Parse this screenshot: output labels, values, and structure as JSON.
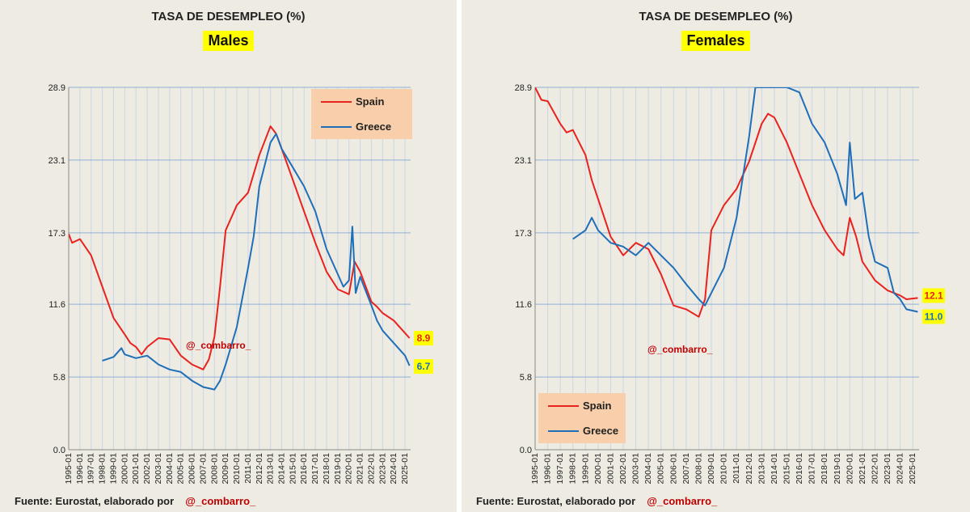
{
  "panels": [
    {
      "title": "TASA DE DESEMPLEO (%)",
      "subtitle": "Males",
      "watermark": "@_combarro_",
      "source_text": "Fuente: Eurostat, elaborado por",
      "source_handle": "@_combarro_"
    },
    {
      "title": "TASA DE DESEMPLEO (%)",
      "subtitle": "Females",
      "watermark": "@_combarro_",
      "source_text": "Fuente: Eurostat, elaborado por",
      "source_handle": "@_combarro_"
    }
  ],
  "chart_data": [
    {
      "type": "line",
      "title": "TASA DE DESEMPLEO (%)",
      "subtitle": "Males",
      "x_ticks": [
        "1995-01",
        "1996-01",
        "1997-01",
        "1998-01",
        "1999-01",
        "2000-01",
        "2001-01",
        "2002-01",
        "2003-01",
        "2004-01",
        "2005-01",
        "2006-01",
        "2007-01",
        "2008-01",
        "2009-01",
        "2010-01",
        "2011-01",
        "2012-01",
        "2013-01",
        "2014-01",
        "2015-01",
        "2016-01",
        "2017-01",
        "2018-01",
        "2019-01",
        "2020-01",
        "2021-01",
        "2022-01",
        "2023-01",
        "2024-01",
        "2025-01"
      ],
      "y_ticks": [
        "0.0",
        "5.8",
        "11.6",
        "17.3",
        "23.1",
        "28.9"
      ],
      "ylim": [
        0,
        28.9
      ],
      "grid": true,
      "legend_position": "top-right",
      "series": [
        {
          "name": "Spain",
          "color": "#e8231e",
          "start": 1995.0,
          "end_label": "8.9",
          "label_bg": "#ffff00",
          "label_color": "#e8231e",
          "points": [
            [
              1995.0,
              17.2
            ],
            [
              1995.3,
              16.5
            ],
            [
              1996.0,
              16.8
            ],
            [
              1997.0,
              15.5
            ],
            [
              1998.0,
              13.0
            ],
            [
              1999.0,
              10.5
            ],
            [
              2000.0,
              9.2
            ],
            [
              2000.5,
              8.5
            ],
            [
              2001.0,
              8.2
            ],
            [
              2001.5,
              7.6
            ],
            [
              2002.0,
              8.2
            ],
            [
              2003.0,
              8.9
            ],
            [
              2004.0,
              8.8
            ],
            [
              2005.0,
              7.5
            ],
            [
              2006.0,
              6.8
            ],
            [
              2007.0,
              6.4
            ],
            [
              2007.5,
              7.2
            ],
            [
              2008.0,
              9.0
            ],
            [
              2008.5,
              13.0
            ],
            [
              2009.0,
              17.5
            ],
            [
              2010.0,
              19.5
            ],
            [
              2011.0,
              20.5
            ],
            [
              2012.0,
              23.5
            ],
            [
              2013.0,
              25.8
            ],
            [
              2013.5,
              25.2
            ],
            [
              2014.0,
              24.0
            ],
            [
              2015.0,
              21.5
            ],
            [
              2016.0,
              19.0
            ],
            [
              2017.0,
              16.5
            ],
            [
              2018.0,
              14.2
            ],
            [
              2019.0,
              12.8
            ],
            [
              2020.0,
              12.4
            ],
            [
              2020.5,
              15.0
            ],
            [
              2021.0,
              14.2
            ],
            [
              2022.0,
              11.8
            ],
            [
              2022.5,
              11.4
            ],
            [
              2023.0,
              10.9
            ],
            [
              2024.0,
              10.3
            ],
            [
              2024.5,
              9.8
            ],
            [
              2025.0,
              9.3
            ],
            [
              2025.4,
              8.9
            ]
          ]
        },
        {
          "name": "Greece",
          "color": "#1f6fb8",
          "start": 1998.0,
          "end_label": "6.7",
          "label_bg": "#ffff00",
          "label_color": "#1f6fb8",
          "points": [
            [
              1998.0,
              7.1
            ],
            [
              1999.0,
              7.4
            ],
            [
              1999.7,
              8.1
            ],
            [
              2000.0,
              7.6
            ],
            [
              2001.0,
              7.3
            ],
            [
              2002.0,
              7.5
            ],
            [
              2003.0,
              6.8
            ],
            [
              2004.0,
              6.4
            ],
            [
              2005.0,
              6.2
            ],
            [
              2006.0,
              5.5
            ],
            [
              2007.0,
              5.0
            ],
            [
              2008.0,
              4.8
            ],
            [
              2008.5,
              5.5
            ],
            [
              2009.0,
              6.8
            ],
            [
              2010.0,
              9.8
            ],
            [
              2011.0,
              14.5
            ],
            [
              2011.5,
              17.0
            ],
            [
              2012.0,
              21.0
            ],
            [
              2013.0,
              24.5
            ],
            [
              2013.5,
              25.2
            ],
            [
              2014.0,
              24.0
            ],
            [
              2015.0,
              22.5
            ],
            [
              2016.0,
              21.0
            ],
            [
              2017.0,
              19.0
            ],
            [
              2018.0,
              16.0
            ],
            [
              2019.0,
              14.0
            ],
            [
              2019.5,
              13.0
            ],
            [
              2020.0,
              13.5
            ],
            [
              2020.3,
              17.8
            ],
            [
              2020.6,
              12.5
            ],
            [
              2021.0,
              13.8
            ],
            [
              2022.0,
              11.5
            ],
            [
              2022.5,
              10.3
            ],
            [
              2023.0,
              9.5
            ],
            [
              2024.0,
              8.5
            ],
            [
              2025.0,
              7.5
            ],
            [
              2025.4,
              6.7
            ]
          ]
        }
      ]
    },
    {
      "type": "line",
      "title": "TASA DE DESEMPLEO (%)",
      "subtitle": "Females",
      "x_ticks": [
        "1995-01",
        "1996-01",
        "1997-01",
        "1998-01",
        "1999-01",
        "2000-01",
        "2001-01",
        "2002-01",
        "2003-01",
        "2004-01",
        "2005-01",
        "2006-01",
        "2007-01",
        "2008-01",
        "2009-01",
        "2010-01",
        "2011-01",
        "2012-01",
        "2013-01",
        "2014-01",
        "2015-01",
        "2016-01",
        "2017-01",
        "2018-01",
        "2019-01",
        "2020-01",
        "2021-01",
        "2022-01",
        "2023-01",
        "2024-01",
        "2025-01"
      ],
      "y_ticks": [
        "0.0",
        "5.8",
        "11.6",
        "17.3",
        "23.1",
        "28.9"
      ],
      "ylim": [
        0,
        28.9
      ],
      "grid": true,
      "legend_position": "bottom-left",
      "series": [
        {
          "name": "Spain",
          "color": "#e8231e",
          "start": 1995.0,
          "end_label": "12.1",
          "label_bg": "#ffff00",
          "label_color": "#e8231e",
          "points": [
            [
              1995.0,
              28.9
            ],
            [
              1995.5,
              27.9
            ],
            [
              1996.0,
              27.8
            ],
            [
              1997.0,
              26.0
            ],
            [
              1997.5,
              25.3
            ],
            [
              1998.0,
              25.5
            ],
            [
              1999.0,
              23.5
            ],
            [
              1999.5,
              21.5
            ],
            [
              2000.0,
              20.0
            ],
            [
              2001.0,
              17.0
            ],
            [
              2002.0,
              15.5
            ],
            [
              2003.0,
              16.5
            ],
            [
              2004.0,
              16.0
            ],
            [
              2005.0,
              14.0
            ],
            [
              2006.0,
              11.5
            ],
            [
              2007.0,
              11.2
            ],
            [
              2008.0,
              10.6
            ],
            [
              2008.5,
              12.0
            ],
            [
              2009.0,
              17.5
            ],
            [
              2010.0,
              19.5
            ],
            [
              2011.0,
              20.8
            ],
            [
              2012.0,
              23.0
            ],
            [
              2013.0,
              26.0
            ],
            [
              2013.5,
              26.8
            ],
            [
              2014.0,
              26.5
            ],
            [
              2015.0,
              24.5
            ],
            [
              2016.0,
              22.0
            ],
            [
              2017.0,
              19.5
            ],
            [
              2018.0,
              17.5
            ],
            [
              2019.0,
              16.0
            ],
            [
              2019.5,
              15.5
            ],
            [
              2020.0,
              18.5
            ],
            [
              2020.5,
              17.0
            ],
            [
              2021.0,
              15.0
            ],
            [
              2022.0,
              13.5
            ],
            [
              2023.0,
              12.7
            ],
            [
              2024.0,
              12.3
            ],
            [
              2024.5,
              12.0
            ],
            [
              2025.4,
              12.1
            ]
          ]
        },
        {
          "name": "Greece",
          "color": "#1f6fb8",
          "start": 1998.0,
          "end_label": "11.0",
          "label_bg": "#ffff00",
          "label_color": "#1f6fb8",
          "points": [
            [
              1998.0,
              16.8
            ],
            [
              1999.0,
              17.5
            ],
            [
              1999.5,
              18.5
            ],
            [
              2000.0,
              17.5
            ],
            [
              2001.0,
              16.5
            ],
            [
              2002.0,
              16.2
            ],
            [
              2003.0,
              15.5
            ],
            [
              2004.0,
              16.5
            ],
            [
              2005.0,
              15.5
            ],
            [
              2006.0,
              14.5
            ],
            [
              2007.0,
              13.2
            ],
            [
              2008.0,
              12.0
            ],
            [
              2008.5,
              11.5
            ],
            [
              2009.0,
              12.5
            ],
            [
              2010.0,
              14.5
            ],
            [
              2011.0,
              18.5
            ],
            [
              2012.0,
              25.0
            ],
            [
              2012.5,
              28.9
            ],
            [
              2015.0,
              28.9
            ],
            [
              2016.0,
              28.5
            ],
            [
              2017.0,
              26.0
            ],
            [
              2018.0,
              24.5
            ],
            [
              2019.0,
              22.0
            ],
            [
              2019.7,
              19.5
            ],
            [
              2020.0,
              24.5
            ],
            [
              2020.4,
              20.0
            ],
            [
              2021.0,
              20.5
            ],
            [
              2021.5,
              17.0
            ],
            [
              2022.0,
              15.0
            ],
            [
              2023.0,
              14.5
            ],
            [
              2023.5,
              12.5
            ],
            [
              2024.0,
              12.0
            ],
            [
              2024.5,
              11.2
            ],
            [
              2025.4,
              11.0
            ]
          ]
        }
      ]
    }
  ]
}
